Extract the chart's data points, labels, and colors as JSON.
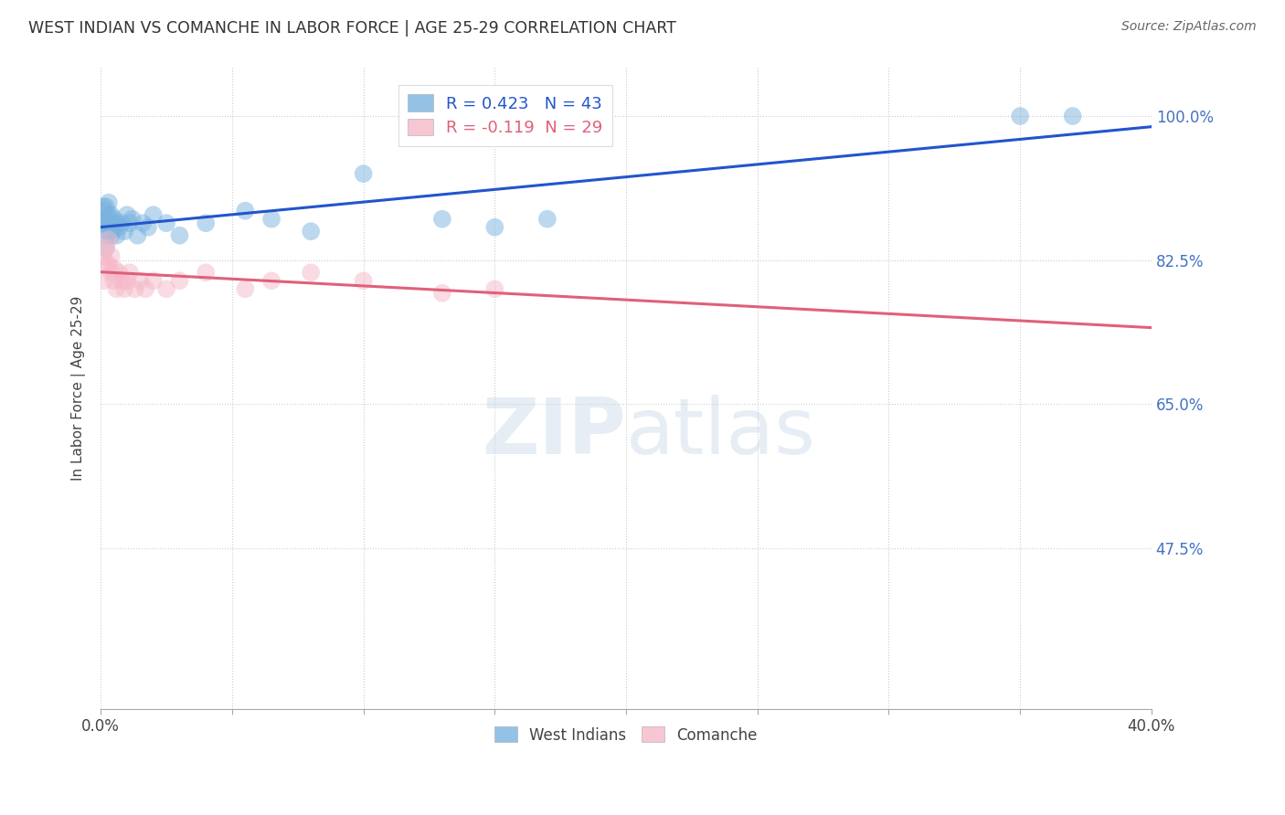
{
  "title": "WEST INDIAN VS COMANCHE IN LABOR FORCE | AGE 25-29 CORRELATION CHART",
  "source": "Source: ZipAtlas.com",
  "ylabel": "In Labor Force | Age 25-29",
  "xlim": [
    0.0,
    0.4
  ],
  "ylim": [
    0.28,
    1.06
  ],
  "xticks": [
    0.0,
    0.05,
    0.1,
    0.15,
    0.2,
    0.25,
    0.3,
    0.35,
    0.4
  ],
  "ytick_positions": [
    0.475,
    0.65,
    0.825,
    1.0
  ],
  "ytick_labels": [
    "47.5%",
    "65.0%",
    "82.5%",
    "100.0%"
  ],
  "blue_R": 0.423,
  "blue_N": 43,
  "pink_R": -0.119,
  "pink_N": 29,
  "blue_color": "#7ab3e0",
  "pink_color": "#f5b8c8",
  "blue_line_color": "#2255cc",
  "pink_line_color": "#e0607a",
  "watermark_zip": "ZIP",
  "watermark_atlas": "atlas",
  "west_indians_x": [
    0.001,
    0.001,
    0.001,
    0.001,
    0.002,
    0.002,
    0.002,
    0.002,
    0.002,
    0.003,
    0.003,
    0.003,
    0.003,
    0.004,
    0.004,
    0.004,
    0.004,
    0.005,
    0.005,
    0.006,
    0.006,
    0.007,
    0.008,
    0.009,
    0.01,
    0.011,
    0.012,
    0.014,
    0.016,
    0.018,
    0.02,
    0.025,
    0.03,
    0.04,
    0.055,
    0.065,
    0.08,
    0.1,
    0.13,
    0.15,
    0.17,
    0.35,
    0.37
  ],
  "west_indians_y": [
    0.875,
    0.87,
    0.885,
    0.89,
    0.84,
    0.855,
    0.87,
    0.89,
    0.86,
    0.875,
    0.88,
    0.87,
    0.895,
    0.855,
    0.87,
    0.86,
    0.88,
    0.865,
    0.875,
    0.87,
    0.855,
    0.865,
    0.87,
    0.86,
    0.88,
    0.87,
    0.875,
    0.855,
    0.87,
    0.865,
    0.88,
    0.87,
    0.855,
    0.87,
    0.885,
    0.875,
    0.86,
    0.93,
    0.875,
    0.865,
    0.875,
    1.0,
    1.0
  ],
  "comanche_x": [
    0.001,
    0.001,
    0.002,
    0.002,
    0.003,
    0.003,
    0.004,
    0.004,
    0.005,
    0.005,
    0.006,
    0.007,
    0.008,
    0.009,
    0.01,
    0.011,
    0.013,
    0.015,
    0.017,
    0.02,
    0.025,
    0.03,
    0.04,
    0.055,
    0.065,
    0.08,
    0.1,
    0.13,
    0.15
  ],
  "comanche_y": [
    0.83,
    0.8,
    0.84,
    0.82,
    0.85,
    0.82,
    0.81,
    0.83,
    0.8,
    0.815,
    0.79,
    0.81,
    0.8,
    0.79,
    0.8,
    0.81,
    0.79,
    0.8,
    0.79,
    0.8,
    0.79,
    0.8,
    0.81,
    0.79,
    0.8,
    0.81,
    0.8,
    0.785,
    0.79
  ]
}
